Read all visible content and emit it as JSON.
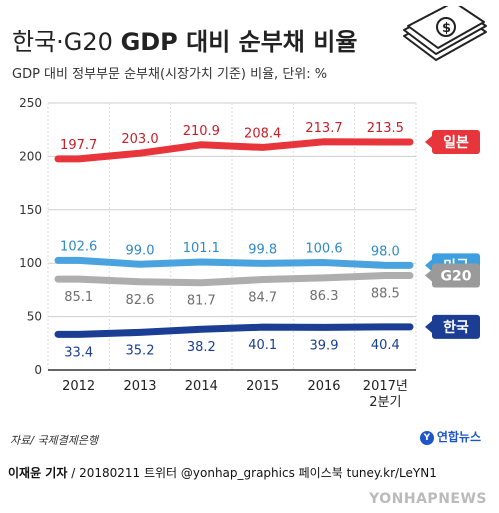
{
  "title_main": "한국·G20 ",
  "title_bold": "GDP 대비 순부채 비율",
  "subtitle": "GDP 대비 정부부문 순부채(시장가치 기준) 비율, 단위: %",
  "source": "자료/ 국제결제은행",
  "footer": {
    "reporter": "이재윤 기자",
    "rest": " / 20180211   트위터 @yonhap_graphics  페이스북 tuney.kr/LeYN1"
  },
  "logo_text": "연합뉴스",
  "watermark": "YONHAPNEWS",
  "icons": {
    "money": "money-stack-icon",
    "logo": "yonhap-logo-icon"
  },
  "chart_data": {
    "type": "line",
    "categories": [
      "2012",
      "2013",
      "2014",
      "2015",
      "2016",
      "2017년 2분기"
    ],
    "ylim": [
      0,
      250
    ],
    "yticks": [
      0,
      50,
      100,
      150,
      200,
      250
    ],
    "grid": true,
    "series": [
      {
        "name": "일본",
        "values": [
          197.7,
          203.0,
          210.9,
          208.4,
          213.7,
          213.5
        ],
        "color": "#e8353c",
        "label_color": "#c81e28",
        "label_bg": "#e8353c"
      },
      {
        "name": "미국",
        "values": [
          102.6,
          99.0,
          101.1,
          99.8,
          100.6,
          98.0
        ],
        "color": "#4aa3df",
        "label_color": "#2f8ac9",
        "label_bg": "#3d9ee0"
      },
      {
        "name": "G20",
        "values": [
          85.1,
          82.6,
          81.7,
          84.7,
          86.3,
          88.5
        ],
        "color": "#aeaeae",
        "label_color": "#6f6f6f",
        "label_bg": "#9a9a9a"
      },
      {
        "name": "한국",
        "values": [
          33.4,
          35.2,
          38.2,
          40.1,
          39.9,
          40.4
        ],
        "color": "#1b3e94",
        "label_color": "#1b3e94",
        "label_bg": "#1b3e94"
      }
    ]
  }
}
